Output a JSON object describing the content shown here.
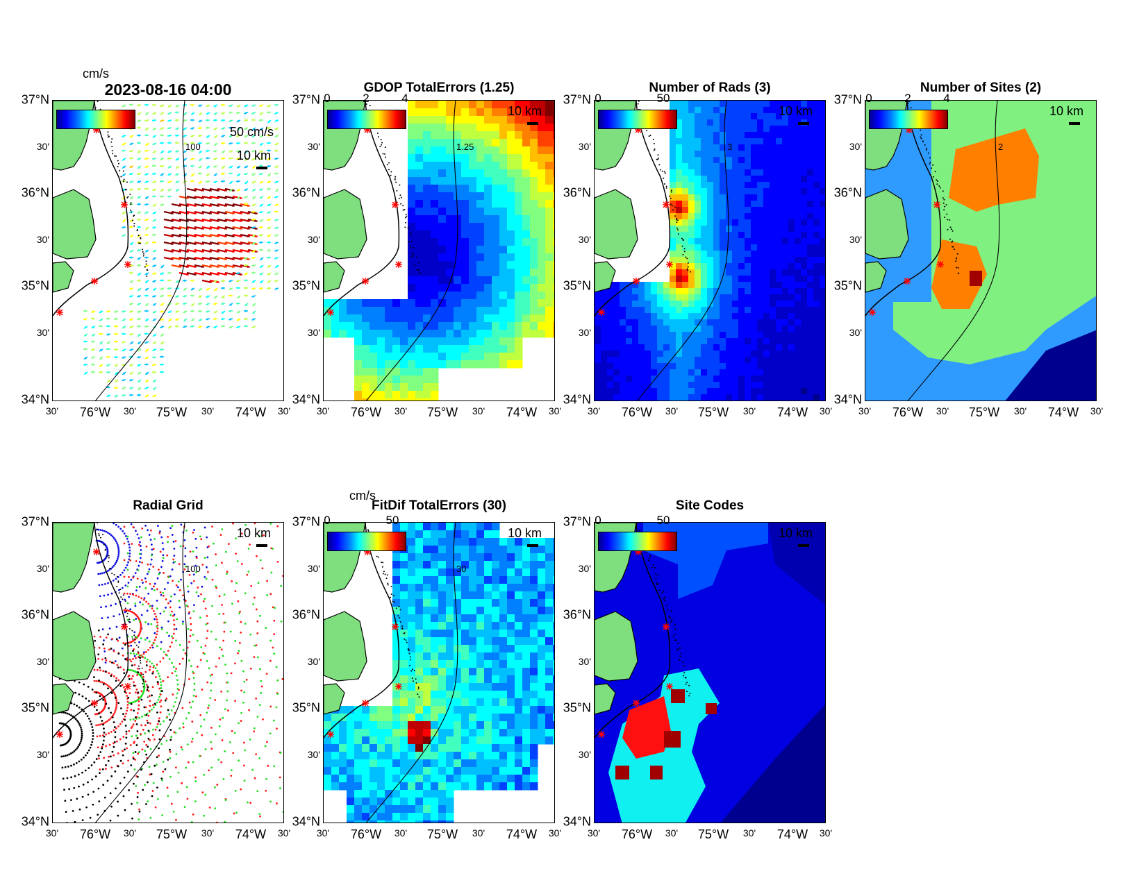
{
  "figure_timestamp": "2023-08-16 04:00",
  "axes": {
    "lat_major": [
      "37°N",
      "36°N",
      "35°N",
      "34°N"
    ],
    "lat_minor": [
      "30'",
      "30'",
      "30'"
    ],
    "lon_labels": [
      "30'",
      "76°W",
      "30'",
      "75°W",
      "30'",
      "74°W",
      "30'"
    ]
  },
  "scale_bar_label": "10 km",
  "colors": {
    "land": "#7fdf7f",
    "coastline": "#000000",
    "site_marker": "#ff0000",
    "radial_blue": "#1010e0",
    "radial_red": "#ff1a1a",
    "radial_green": "#22dd22",
    "radial_black": "#000000"
  },
  "panels": [
    {
      "id": "total-currents",
      "title": "2023-08-16 04:00",
      "cbar_unit": "cm/s",
      "cbar_ticks": [],
      "arrow_scale_label": "50 cm/s",
      "contour_label": "100"
    },
    {
      "id": "gdop",
      "title": "GDOP TotalErrors (1.25)",
      "cbar_unit": "",
      "cbar_ticks": [
        "0",
        "2",
        "4"
      ],
      "contour_label": "1.25"
    },
    {
      "id": "num-rads",
      "title": "Number of Rads (3)",
      "cbar_unit": "",
      "cbar_ticks": [
        "0",
        "50"
      ],
      "contour_label": "3"
    },
    {
      "id": "num-sites",
      "title": "Number of Sites (2)",
      "cbar_unit": "",
      "cbar_ticks": [
        "0",
        "2",
        "4"
      ],
      "contour_label": "2"
    },
    {
      "id": "radial-grid",
      "title": "Radial Grid",
      "contour_label": "100"
    },
    {
      "id": "fitdif",
      "title": "FitDif TotalErrors (30)",
      "cbar_unit": "cm/s",
      "cbar_ticks": [
        "0",
        "50"
      ],
      "contour_label": "30"
    },
    {
      "id": "site-codes",
      "title": "Site Codes",
      "cbar_unit": "",
      "cbar_ticks": [
        "0",
        "50"
      ]
    }
  ],
  "site_markers": [
    "site-1",
    "site-2",
    "site-3",
    "site-4",
    "site-5"
  ]
}
